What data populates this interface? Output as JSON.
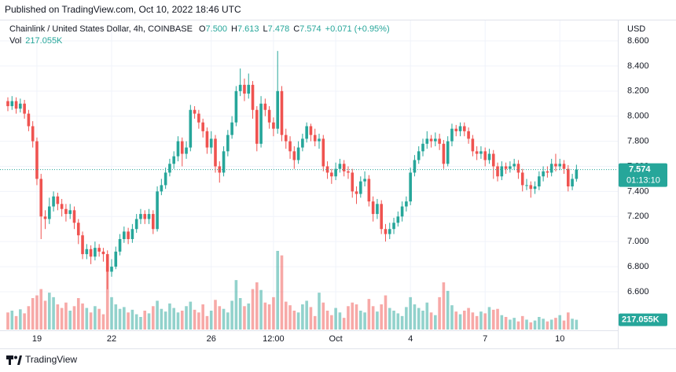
{
  "chart_data": {
    "type": "candlestick",
    "publisher_note": "Published on TradingView.com, Oct 10, 2022 18:46 UTC",
    "title": "Chainlink / United States Dollar, 4h, COINBASE",
    "ohlc_legend": [
      {
        "key": "O",
        "value": 7.5,
        "label": "7.500"
      },
      {
        "key": "H",
        "value": 7.613,
        "label": "7.613"
      },
      {
        "key": "L",
        "value": 7.478,
        "label": "7.478"
      },
      {
        "key": "C",
        "value": 7.574,
        "label": "7.574"
      }
    ],
    "change_label": "+0.071 (+0.95%)",
    "volume_title": "Vol",
    "volume_value_label": "217.055K",
    "currency": "USD",
    "countdown": "01:13:10",
    "brand": "TradingView",
    "up_color": "#26a69a",
    "down_color": "#ef5350",
    "grid": true,
    "categories": [
      null,
      null,
      null,
      null,
      null,
      null,
      null,
      "19",
      null,
      null,
      null,
      null,
      null,
      null,
      null,
      null,
      null,
      null,
      null,
      null,
      null,
      null,
      null,
      null,
      null,
      "22",
      null,
      null,
      null,
      null,
      null,
      null,
      null,
      null,
      null,
      null,
      null,
      null,
      null,
      null,
      null,
      null,
      null,
      null,
      null,
      null,
      null,
      null,
      null,
      "26",
      null,
      null,
      null,
      null,
      null,
      null,
      null,
      null,
      null,
      null,
      null,
      null,
      null,
      null,
      "12:00",
      null,
      null,
      null,
      null,
      null,
      null,
      null,
      null,
      null,
      null,
      null,
      null,
      null,
      null,
      "Oct",
      null,
      null,
      null,
      null,
      null,
      null,
      null,
      null,
      null,
      null,
      null,
      null,
      null,
      null,
      null,
      null,
      null,
      "4",
      null,
      null,
      null,
      null,
      null,
      null,
      null,
      null,
      null,
      null,
      null,
      null,
      null,
      null,
      null,
      null,
      null,
      "7",
      null,
      null,
      null,
      null,
      null,
      null,
      null,
      null,
      null,
      null,
      null,
      null,
      null,
      null,
      null,
      null,
      null,
      "10",
      null,
      null,
      null,
      null
    ],
    "open": [
      8.12,
      8.08,
      8.12,
      8.06,
      8.1,
      8.02,
      7.92,
      7.8,
      7.5,
      7.2,
      7.18,
      7.28,
      7.36,
      7.3,
      7.26,
      7.22,
      7.25,
      7.15,
      7.05,
      6.9,
      6.94,
      6.88,
      6.95,
      6.92,
      6.9,
      6.76,
      6.8,
      6.92,
      7.02,
      7.08,
      7.02,
      7.1,
      7.18,
      7.22,
      7.18,
      7.22,
      7.1,
      7.4,
      7.45,
      7.55,
      7.62,
      7.68,
      7.8,
      7.7,
      7.75,
      8.05,
      8.02,
      7.95,
      7.88,
      7.75,
      7.82,
      7.6,
      7.55,
      7.72,
      7.85,
      7.95,
      8.2,
      8.25,
      8.18,
      8.25,
      8.05,
      7.78,
      8.1,
      8.05,
      7.95,
      7.9,
      8.2,
      7.85,
      7.8,
      7.72,
      7.65,
      7.75,
      7.82,
      7.92,
      7.85,
      7.8,
      7.82,
      7.6,
      7.55,
      7.52,
      7.58,
      7.62,
      7.56,
      7.55,
      7.4,
      7.38,
      7.48,
      7.5,
      7.32,
      7.22,
      7.3,
      7.1,
      7.06,
      7.1,
      7.15,
      7.2,
      7.28,
      7.32,
      7.55,
      7.65,
      7.72,
      7.78,
      7.82,
      7.8,
      7.82,
      7.78,
      7.62,
      7.8,
      7.9,
      7.88,
      7.92,
      7.88,
      7.82,
      7.72,
      7.7,
      7.72,
      7.65,
      7.7,
      7.6,
      7.52,
      7.6,
      7.58,
      7.6,
      7.62,
      7.55,
      7.45,
      7.45,
      7.42,
      7.44,
      7.52,
      7.56,
      7.55,
      7.62,
      7.6,
      7.62,
      7.58,
      7.44,
      7.5
    ],
    "high": [
      8.15,
      8.16,
      8.15,
      8.14,
      8.13,
      8.05,
      7.96,
      7.83,
      7.54,
      7.25,
      7.35,
      7.4,
      7.39,
      7.34,
      7.3,
      7.3,
      7.28,
      7.18,
      7.08,
      6.98,
      6.97,
      7.0,
      6.98,
      6.95,
      6.93,
      6.86,
      6.96,
      7.06,
      7.12,
      7.11,
      7.14,
      7.22,
      7.26,
      7.25,
      7.26,
      7.25,
      7.44,
      7.5,
      7.59,
      7.66,
      7.72,
      7.84,
      7.83,
      7.8,
      8.09,
      8.08,
      8.05,
      7.98,
      7.91,
      7.88,
      7.85,
      7.64,
      7.76,
      7.89,
      8.0,
      8.24,
      8.38,
      8.3,
      8.34,
      8.28,
      8.08,
      8.16,
      8.14,
      8.08,
      7.99,
      8.52,
      8.24,
      7.9,
      7.84,
      7.76,
      7.8,
      7.86,
      7.95,
      7.94,
      7.9,
      7.86,
      7.85,
      7.64,
      7.58,
      7.63,
      7.66,
      7.65,
      7.6,
      7.58,
      7.44,
      7.52,
      7.56,
      7.53,
      7.36,
      7.34,
      7.33,
      7.14,
      7.15,
      7.19,
      7.24,
      7.32,
      7.36,
      7.59,
      7.69,
      7.76,
      7.82,
      7.88,
      7.85,
      7.87,
      7.86,
      7.81,
      7.84,
      7.94,
      7.93,
      7.95,
      7.95,
      7.91,
      7.85,
      7.76,
      7.76,
      7.75,
      7.74,
      7.73,
      7.63,
      7.64,
      7.63,
      7.64,
      7.66,
      7.65,
      7.58,
      7.5,
      7.48,
      7.48,
      7.56,
      7.6,
      7.6,
      7.66,
      7.7,
      7.66,
      7.65,
      7.61,
      7.54,
      7.613
    ],
    "low": [
      8.04,
      8.05,
      8.02,
      8.03,
      7.98,
      7.88,
      7.75,
      7.45,
      7.02,
      7.1,
      7.14,
      7.24,
      7.25,
      7.2,
      7.16,
      7.18,
      7.1,
      6.98,
      6.86,
      6.86,
      6.82,
      6.85,
      6.88,
      6.84,
      6.62,
      6.72,
      6.78,
      6.89,
      6.99,
      6.98,
      6.99,
      7.07,
      7.14,
      7.14,
      7.14,
      7.06,
      7.08,
      7.37,
      7.42,
      7.52,
      7.58,
      7.64,
      7.6,
      7.66,
      7.72,
      7.98,
      7.9,
      7.83,
      7.7,
      7.7,
      7.55,
      7.47,
      7.52,
      7.68,
      7.82,
      7.92,
      8.16,
      8.12,
      8.14,
      7.98,
      7.72,
      7.75,
      8.0,
      7.9,
      7.84,
      7.86,
      7.8,
      7.74,
      7.66,
      7.58,
      7.62,
      7.72,
      7.79,
      7.8,
      7.76,
      7.74,
      7.56,
      7.5,
      7.46,
      7.49,
      7.55,
      7.52,
      7.5,
      7.35,
      7.3,
      7.35,
      7.44,
      7.28,
      7.16,
      7.18,
      7.06,
      7.0,
      7.02,
      7.06,
      7.12,
      7.16,
      7.24,
      7.29,
      7.52,
      7.62,
      7.68,
      7.74,
      7.75,
      7.76,
      7.73,
      7.58,
      7.6,
      7.76,
      7.84,
      7.84,
      7.84,
      7.78,
      7.68,
      7.65,
      7.66,
      7.6,
      7.62,
      7.5,
      7.48,
      7.49,
      7.54,
      7.55,
      7.57,
      7.5,
      7.4,
      7.41,
      7.35,
      7.38,
      7.41,
      7.48,
      7.51,
      7.52,
      7.56,
      7.57,
      7.54,
      7.4,
      7.41,
      7.478
    ],
    "close": [
      8.08,
      8.12,
      8.06,
      8.1,
      8.02,
      7.92,
      7.8,
      7.5,
      7.2,
      7.18,
      7.28,
      7.36,
      7.3,
      7.26,
      7.22,
      7.25,
      7.15,
      7.05,
      6.9,
      6.94,
      6.88,
      6.95,
      6.92,
      6.9,
      6.76,
      6.8,
      6.92,
      7.02,
      7.08,
      7.02,
      7.1,
      7.18,
      7.22,
      7.18,
      7.22,
      7.1,
      7.4,
      7.45,
      7.55,
      7.62,
      7.68,
      7.8,
      7.7,
      7.75,
      8.05,
      8.02,
      7.95,
      7.88,
      7.75,
      7.82,
      7.6,
      7.55,
      7.72,
      7.85,
      7.95,
      8.2,
      8.25,
      8.18,
      8.25,
      8.05,
      7.78,
      8.1,
      8.05,
      7.95,
      7.9,
      8.2,
      7.85,
      7.8,
      7.72,
      7.65,
      7.75,
      7.82,
      7.92,
      7.85,
      7.8,
      7.82,
      7.6,
      7.55,
      7.52,
      7.58,
      7.62,
      7.56,
      7.55,
      7.4,
      7.38,
      7.48,
      7.5,
      7.32,
      7.22,
      7.3,
      7.1,
      7.06,
      7.1,
      7.15,
      7.2,
      7.28,
      7.32,
      7.55,
      7.65,
      7.72,
      7.78,
      7.82,
      7.8,
      7.82,
      7.78,
      7.62,
      7.8,
      7.9,
      7.88,
      7.92,
      7.88,
      7.82,
      7.72,
      7.7,
      7.72,
      7.65,
      7.7,
      7.6,
      7.52,
      7.6,
      7.58,
      7.6,
      7.62,
      7.55,
      7.45,
      7.45,
      7.42,
      7.44,
      7.52,
      7.56,
      7.55,
      7.62,
      7.6,
      7.62,
      7.58,
      7.44,
      7.5,
      7.574
    ],
    "volume": [
      380,
      420,
      300,
      450,
      360,
      520,
      700,
      760,
      900,
      640,
      820,
      720,
      560,
      480,
      600,
      420,
      520,
      700,
      580,
      480,
      380,
      520,
      460,
      340,
      1400,
      720,
      560,
      460,
      500,
      380,
      440,
      340,
      280,
      420,
      360,
      520,
      640,
      460,
      400,
      580,
      480,
      380,
      420,
      520,
      620,
      440,
      380,
      560,
      300,
      420,
      660,
      520,
      460,
      380,
      640,
      1100,
      700,
      520,
      580,
      900,
      1050,
      880,
      600,
      560,
      720,
      1750,
      1650,
      620,
      540,
      420,
      380,
      560,
      640,
      500,
      300,
      820,
      600,
      420,
      320,
      480,
      380,
      260,
      520,
      600,
      560,
      420,
      380,
      680,
      520,
      400,
      560,
      760,
      480,
      420,
      360,
      300,
      500,
      720,
      560,
      480,
      420,
      600,
      380,
      320,
      720,
      1050,
      860,
      540,
      400,
      340,
      420,
      480,
      380,
      300,
      400,
      360,
      500,
      440,
      460,
      320,
      280,
      220,
      260,
      180,
      300,
      220,
      160,
      200,
      280,
      240,
      180,
      220,
      260,
      320,
      200,
      380,
      240,
      217.055
    ],
    "ylim": [
      6.305,
      8.757
    ],
    "yticks": [
      {
        "value": 6.6,
        "label": "6.600"
      },
      {
        "value": 6.8,
        "label": "6.800"
      },
      {
        "value": 7.0,
        "label": "7.000"
      },
      {
        "value": 7.2,
        "label": "7.200"
      },
      {
        "value": 7.4,
        "label": "7.400"
      },
      {
        "value": 7.6,
        "label": "7.600"
      },
      {
        "value": 7.8,
        "label": "7.800"
      },
      {
        "value": 8.0,
        "label": "8.000"
      },
      {
        "value": 8.2,
        "label": "8.200"
      },
      {
        "value": 8.4,
        "label": "8.400"
      },
      {
        "value": 8.6,
        "label": "8.600"
      }
    ]
  }
}
